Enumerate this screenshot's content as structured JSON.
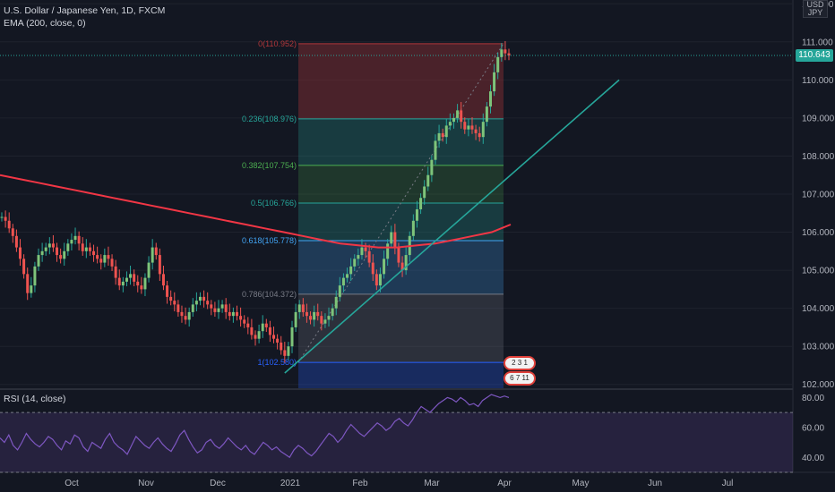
{
  "header": {
    "title": "U.S. Dollar / Japanese Yen, 1D, FXCM",
    "indicator": "EMA (200, close, 0)",
    "quote_currency": "USD",
    "quote_currency_line2": "JPY"
  },
  "rsi_panel": {
    "label": "RSI (14, close)",
    "ticks": [
      "80.00",
      "60.00",
      "40.00"
    ]
  },
  "price_axis": {
    "ticks": [
      "112.000",
      "111.000",
      "110.000",
      "109.000",
      "108.000",
      "107.000",
      "106.000",
      "105.000",
      "104.000",
      "103.000",
      "102.000"
    ],
    "current_price": "110.643"
  },
  "time_axis": {
    "labels": [
      "Oct",
      "Nov",
      "Dec",
      "2021",
      "Feb",
      "Mar",
      "Apr",
      "May",
      "Jun",
      "Jul"
    ]
  },
  "event_badges": {
    "top": "2 3 1",
    "bottom": "6 7 11"
  },
  "chart_data": {
    "type": "candlestick",
    "symbol": "USDJPY",
    "timeframe": "1D",
    "ylim": [
      101.9,
      112.1
    ],
    "fibonacci": {
      "high": 110.952,
      "low": 102.58,
      "levels": [
        {
          "ratio": "0",
          "price": "110.952",
          "label": "0(110.952)"
        },
        {
          "ratio": "0.236",
          "price": "108.976",
          "label": "0.236(108.976)"
        },
        {
          "ratio": "0.382",
          "price": "107.754",
          "label": "0.382(107.754)"
        },
        {
          "ratio": "0.5",
          "price": "106.766",
          "label": "0.5(106.766)"
        },
        {
          "ratio": "0.618",
          "price": "105.778",
          "label": "0.618(105.778)"
        },
        {
          "ratio": "0.786",
          "price": "104.372",
          "label": "0.786(104.372)"
        },
        {
          "ratio": "1",
          "price": "102.580",
          "label": "1(102.580)"
        }
      ],
      "colors": [
        "#b2373a",
        "#26a69a",
        "#4caf50",
        "#26a69a",
        "#42a5f5",
        "#787b86",
        "#2962ff"
      ]
    },
    "close_series": [
      106.4,
      106.3,
      106.1,
      105.9,
      105.6,
      105.3,
      104.9,
      104.4,
      104.6,
      105.1,
      105.4,
      105.5,
      105.6,
      105.7,
      105.6,
      105.4,
      105.3,
      105.5,
      105.7,
      105.8,
      105.9,
      105.7,
      105.5,
      105.6,
      105.5,
      105.4,
      105.3,
      105.2,
      105.4,
      105.3,
      105.1,
      104.8,
      104.6,
      104.7,
      104.8,
      104.9,
      104.7,
      104.6,
      104.5,
      104.8,
      105.2,
      105.6,
      105.4,
      104.9,
      104.6,
      104.3,
      104.2,
      104.1,
      103.9,
      103.8,
      103.7,
      103.9,
      104.1,
      104.2,
      104.3,
      104.2,
      104.1,
      104.0,
      103.9,
      104.0,
      104.1,
      103.9,
      103.8,
      103.9,
      103.8,
      103.7,
      103.6,
      103.5,
      103.3,
      103.2,
      103.4,
      103.6,
      103.5,
      103.3,
      103.2,
      103.1,
      102.9,
      102.75,
      103.0,
      103.5,
      103.9,
      104.1,
      103.9,
      103.8,
      103.7,
      103.9,
      103.8,
      103.6,
      103.7,
      103.8,
      104.0,
      104.3,
      104.6,
      104.8,
      104.9,
      105.1,
      105.3,
      105.4,
      105.6,
      105.5,
      105.2,
      104.9,
      104.6,
      104.9,
      105.3,
      105.7,
      106.0,
      105.6,
      105.2,
      105.0,
      105.4,
      105.9,
      106.3,
      106.6,
      106.9,
      107.2,
      107.5,
      107.9,
      108.4,
      108.6,
      108.5,
      108.8,
      108.9,
      109.0,
      109.2,
      108.9,
      108.7,
      108.8,
      108.7,
      108.6,
      108.5,
      108.9,
      109.3,
      109.7,
      110.2,
      110.6,
      110.8,
      110.7,
      110.64
    ],
    "ema_series": [
      107.5,
      107.4,
      107.3,
      107.2,
      107.1,
      107.0,
      106.9,
      106.8,
      106.7,
      106.6,
      106.5,
      106.4,
      106.3,
      106.2,
      106.1,
      106.0,
      105.9,
      105.8,
      105.7,
      105.65,
      105.6,
      105.6,
      105.65,
      105.7,
      105.8,
      105.9,
      106.0,
      106.2
    ],
    "trendline": {
      "from": {
        "index": 77,
        "price": 102.3
      },
      "to": {
        "index": 168,
        "price": 110.0
      }
    },
    "current_price": 110.643,
    "rsi": {
      "ylim": [
        30,
        85
      ],
      "overbought": 70,
      "oversold": 30,
      "values": [
        53,
        50,
        55,
        48,
        45,
        50,
        56,
        52,
        49,
        47,
        50,
        54,
        52,
        48,
        45,
        51,
        49,
        55,
        53,
        47,
        44,
        50,
        48,
        46,
        52,
        56,
        50,
        47,
        45,
        42,
        48,
        54,
        51,
        48,
        46,
        50,
        53,
        49,
        46,
        44,
        49,
        55,
        58,
        52,
        47,
        43,
        45,
        50,
        52,
        48,
        46,
        49,
        53,
        50,
        47,
        45,
        48,
        44,
        42,
        46,
        50,
        48,
        45,
        47,
        44,
        42,
        40,
        45,
        48,
        46,
        43,
        41,
        44,
        48,
        52,
        56,
        54,
        50,
        53,
        58,
        62,
        59,
        56,
        54,
        57,
        60,
        63,
        61,
        58,
        60,
        64,
        66,
        63,
        61,
        65,
        70,
        74,
        72,
        70,
        73,
        76,
        78,
        80,
        79,
        77,
        80,
        78,
        75,
        76,
        74,
        78,
        80,
        82,
        81,
        80,
        81,
        80
      ]
    }
  }
}
